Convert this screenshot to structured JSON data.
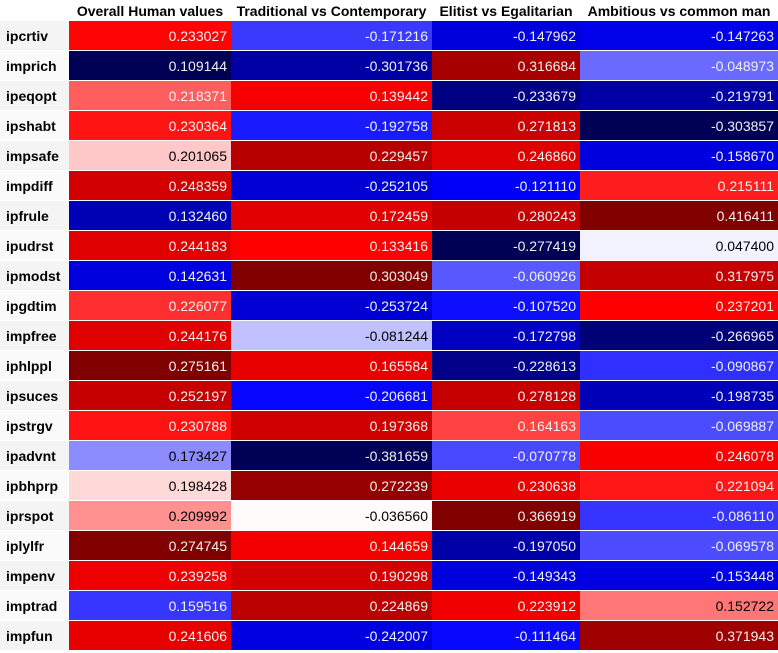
{
  "chart_data": {
    "type": "heatmap",
    "columns": [
      "Overall Human values",
      "Traditional vs Contemporary",
      "Elitist vs Egalitarian",
      "Ambitious vs common man"
    ],
    "rows": [
      {
        "label": "ipcrtiv",
        "values": [
          "0.233027",
          "-0.171216",
          "-0.147962",
          "-0.147263"
        ]
      },
      {
        "label": "imprich",
        "values": [
          "0.109144",
          "-0.301736",
          "0.316684",
          "-0.048973"
        ]
      },
      {
        "label": "ipeqopt",
        "values": [
          "0.218371",
          "0.139442",
          "-0.233679",
          "-0.219791"
        ]
      },
      {
        "label": "ipshabt",
        "values": [
          "0.230364",
          "-0.192758",
          "0.271813",
          "-0.303857"
        ]
      },
      {
        "label": "impsafe",
        "values": [
          "0.201065",
          "0.229457",
          "0.246860",
          "-0.158670"
        ]
      },
      {
        "label": "impdiff",
        "values": [
          "0.248359",
          "-0.252105",
          "-0.121110",
          "0.215111"
        ]
      },
      {
        "label": "ipfrule",
        "values": [
          "0.132460",
          "0.172459",
          "0.280243",
          "0.416411"
        ]
      },
      {
        "label": "ipudrst",
        "values": [
          "0.244183",
          "0.133416",
          "-0.277419",
          "0.047400"
        ]
      },
      {
        "label": "ipmodst",
        "values": [
          "0.142631",
          "0.303049",
          "-0.060926",
          "0.317975"
        ]
      },
      {
        "label": "ipgdtim",
        "values": [
          "0.226077",
          "-0.253724",
          "-0.107520",
          "0.237201"
        ]
      },
      {
        "label": "impfree",
        "values": [
          "0.244176",
          "-0.081244",
          "-0.172798",
          "-0.266965"
        ]
      },
      {
        "label": "iphlppl",
        "values": [
          "0.275161",
          "0.165584",
          "-0.228613",
          "-0.090867"
        ]
      },
      {
        "label": "ipsuces",
        "values": [
          "0.252197",
          "-0.206681",
          "0.278128",
          "-0.198735"
        ]
      },
      {
        "label": "ipstrgv",
        "values": [
          "0.230788",
          "0.197368",
          "0.164163",
          "-0.069887"
        ]
      },
      {
        "label": "ipadvnt",
        "values": [
          "0.173427",
          "-0.381659",
          "-0.070778",
          "0.246078"
        ]
      },
      {
        "label": "ipbhprp",
        "values": [
          "0.198428",
          "0.272239",
          "0.230638",
          "0.221094"
        ]
      },
      {
        "label": "iprspot",
        "values": [
          "0.209992",
          "-0.036560",
          "0.366919",
          "-0.086110"
        ]
      },
      {
        "label": "iplylfr",
        "values": [
          "0.274745",
          "0.144659",
          "-0.197050",
          "-0.069578"
        ]
      },
      {
        "label": "impenv",
        "values": [
          "0.239258",
          "0.190298",
          "-0.149343",
          "-0.153448"
        ]
      },
      {
        "label": "imptrad",
        "values": [
          "0.159516",
          "0.224869",
          "0.223912",
          "0.152722"
        ]
      },
      {
        "label": "impfun",
        "values": [
          "0.241606",
          "-0.242007",
          "-0.111464",
          "0.371943"
        ]
      }
    ],
    "colormap": "bwr (blue = low, white = mid, red = high), scaled per column"
  }
}
